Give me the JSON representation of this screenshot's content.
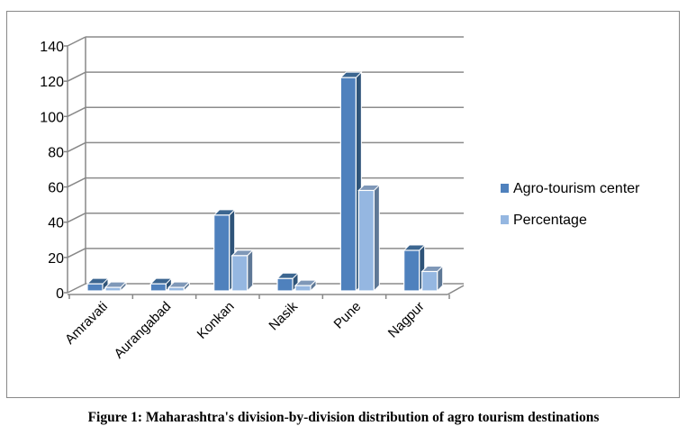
{
  "chart_data": {
    "type": "bar",
    "categories": [
      "Amravati",
      "Aurangabad",
      "Konkan",
      "Nasik",
      "Pune",
      "Nagpur"
    ],
    "series": [
      {
        "name": "Agro-tourism center",
        "values": [
          4,
          4,
          43,
          7,
          121,
          23
        ],
        "color": "#4f81bd"
      },
      {
        "name": "Percentage",
        "values": [
          2,
          2,
          20,
          3,
          57,
          11
        ],
        "color": "#95b7e1"
      }
    ],
    "yticks": [
      0,
      20,
      40,
      60,
      80,
      100,
      120,
      140
    ],
    "ylim": [
      0,
      140
    ],
    "grid": true,
    "legend_position": "right",
    "xlabel": "",
    "ylabel": ""
  },
  "caption": "Figure 1: Maharashtra's division-by-division distribution of agro tourism destinations"
}
